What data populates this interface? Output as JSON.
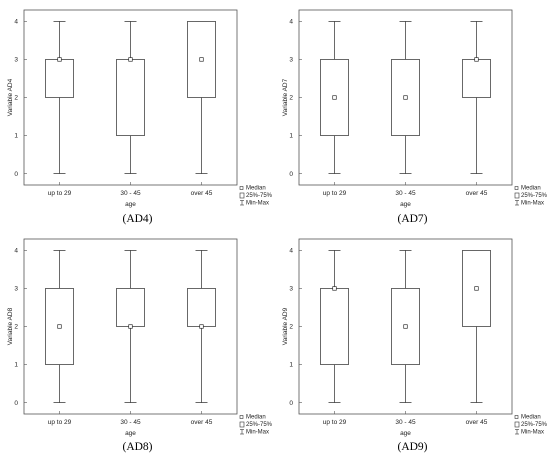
{
  "legend": {
    "median": "Median",
    "iqr": "25%-75%",
    "range": "Min-Max"
  },
  "chart_data": [
    {
      "type": "box",
      "caption": "(AD4)",
      "xlabel": "age",
      "ylabel": "Variable AD4",
      "categories": [
        "up to 29",
        "30 - 45",
        "over 45"
      ],
      "yticks": [
        "0",
        "1",
        "2",
        "3",
        "4"
      ],
      "ylim": [
        -0.3,
        4.3
      ],
      "grid": false,
      "legend_position": "bottom-right",
      "boxes": [
        {
          "min": 0,
          "q1": 2,
          "median": 3,
          "q3": 3,
          "max": 4
        },
        {
          "min": 0,
          "q1": 1,
          "median": 3,
          "q3": 3,
          "max": 4
        },
        {
          "min": 0,
          "q1": 2,
          "median": 3,
          "q3": 4,
          "max": 4
        }
      ]
    },
    {
      "type": "box",
      "caption": "(AD7)",
      "xlabel": "age",
      "ylabel": "Variable AD7",
      "categories": [
        "up to 29",
        "30 - 45",
        "over 45"
      ],
      "yticks": [
        "0",
        "1",
        "2",
        "3",
        "4"
      ],
      "ylim": [
        -0.3,
        4.3
      ],
      "grid": false,
      "legend_position": "bottom-right",
      "boxes": [
        {
          "min": 0,
          "q1": 1,
          "median": 2,
          "q3": 3,
          "max": 4
        },
        {
          "min": 0,
          "q1": 1,
          "median": 2,
          "q3": 3,
          "max": 4
        },
        {
          "min": 0,
          "q1": 2,
          "median": 3,
          "q3": 3,
          "max": 4
        }
      ]
    },
    {
      "type": "box",
      "caption": "(AD8)",
      "xlabel": "age",
      "ylabel": "Variable AD8",
      "categories": [
        "up to 29",
        "30 - 45",
        "over 45"
      ],
      "yticks": [
        "0",
        "1",
        "2",
        "3",
        "4"
      ],
      "ylim": [
        -0.3,
        4.3
      ],
      "grid": false,
      "legend_position": "bottom-right",
      "boxes": [
        {
          "min": 0,
          "q1": 1,
          "median": 2,
          "q3": 3,
          "max": 4
        },
        {
          "min": 0,
          "q1": 2,
          "median": 2,
          "q3": 3,
          "max": 4
        },
        {
          "min": 0,
          "q1": 2,
          "median": 2,
          "q3": 3,
          "max": 4
        }
      ]
    },
    {
      "type": "box",
      "caption": "(AD9)",
      "xlabel": "age",
      "ylabel": "Variable AD9",
      "categories": [
        "up to 29",
        "30 - 45",
        "over 45"
      ],
      "yticks": [
        "0",
        "1",
        "2",
        "3",
        "4"
      ],
      "ylim": [
        -0.3,
        4.3
      ],
      "grid": false,
      "legend_position": "bottom-right",
      "boxes": [
        {
          "min": 0,
          "q1": 1,
          "median": 3,
          "q3": 3,
          "max": 4
        },
        {
          "min": 0,
          "q1": 1,
          "median": 2,
          "q3": 3,
          "max": 4
        },
        {
          "min": 0,
          "q1": 2,
          "median": 3,
          "q3": 4,
          "max": 4
        }
      ]
    }
  ]
}
